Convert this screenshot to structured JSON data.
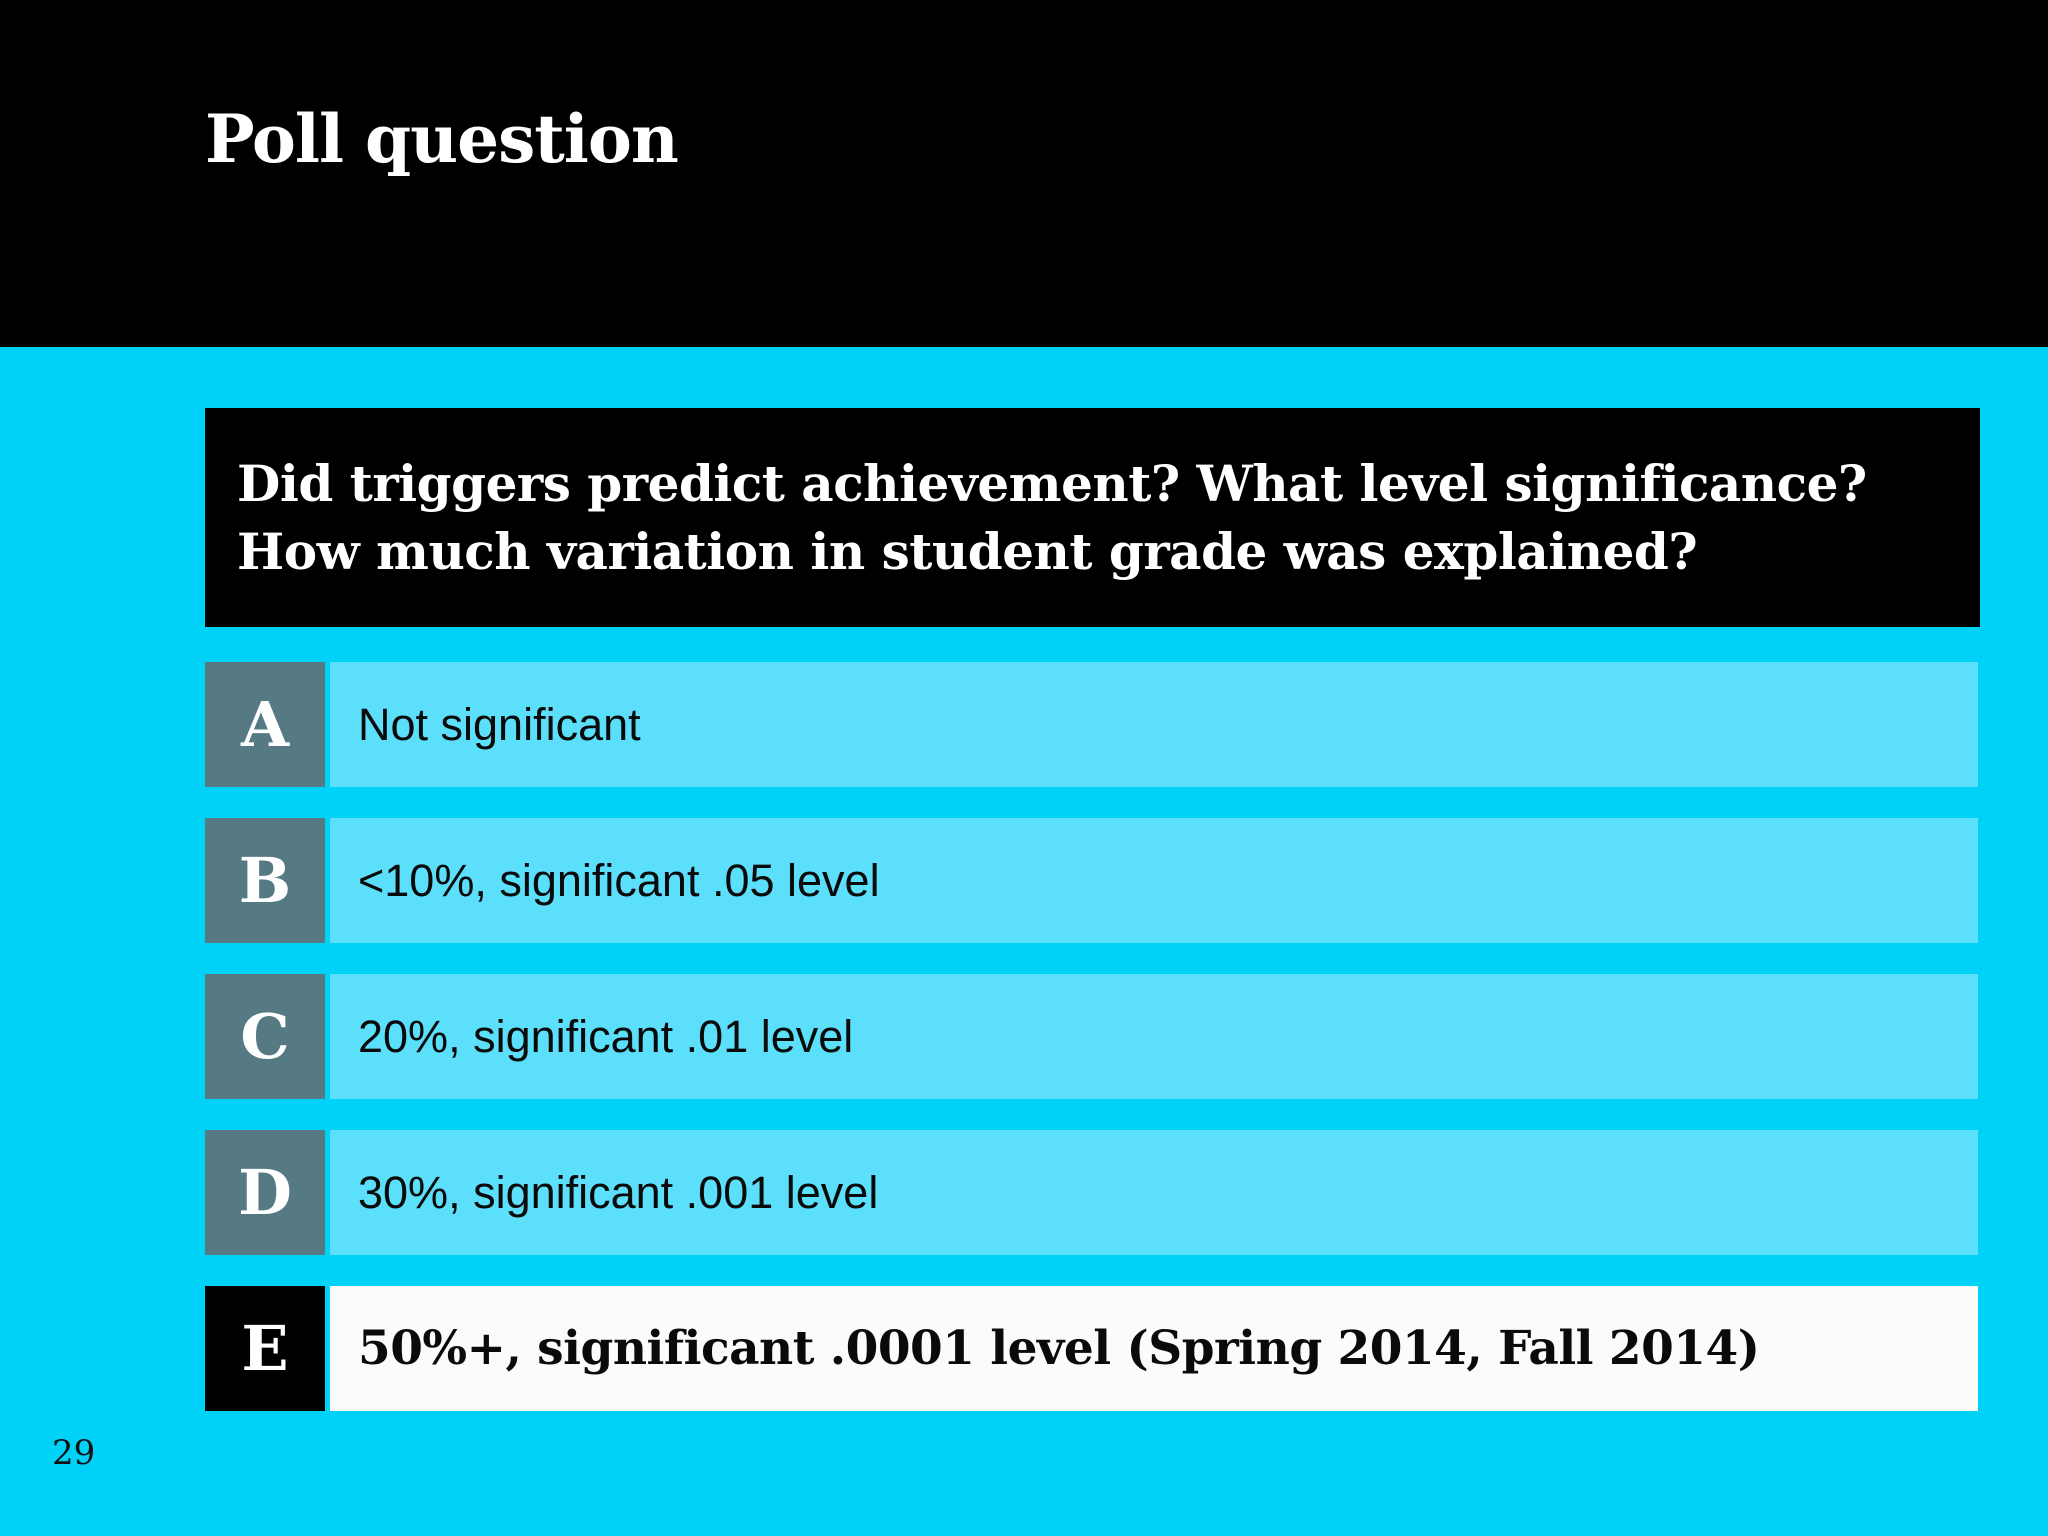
{
  "slide": {
    "title": "Poll question",
    "page_number": "29",
    "question": {
      "line1": "Did triggers predict achievement? What level significance?",
      "line2": "How much variation in student grade was explained?"
    },
    "answers": [
      {
        "letter": "A",
        "text": "Not significant"
      },
      {
        "letter": "B",
        "text": "<10%, significant .05 level"
      },
      {
        "letter": "C",
        "text": "20%, significant .01 level"
      },
      {
        "letter": "D",
        "text": "30%, significant .001 level"
      },
      {
        "letter": "E",
        "text": "50%+, significant .0001 level (Spring 2014, Fall 2014)"
      }
    ],
    "colors": {
      "background": "#00d2f7",
      "header_bar": "#000000",
      "question_box": "#000000",
      "option_strip": "#5bdffb",
      "option_letter_box": "#567a84",
      "highlight_strip": "#fbfbfb",
      "highlight_letter_box": "#000000",
      "title_text": "#ffffff",
      "answer_text": "#0a0a0a"
    }
  }
}
